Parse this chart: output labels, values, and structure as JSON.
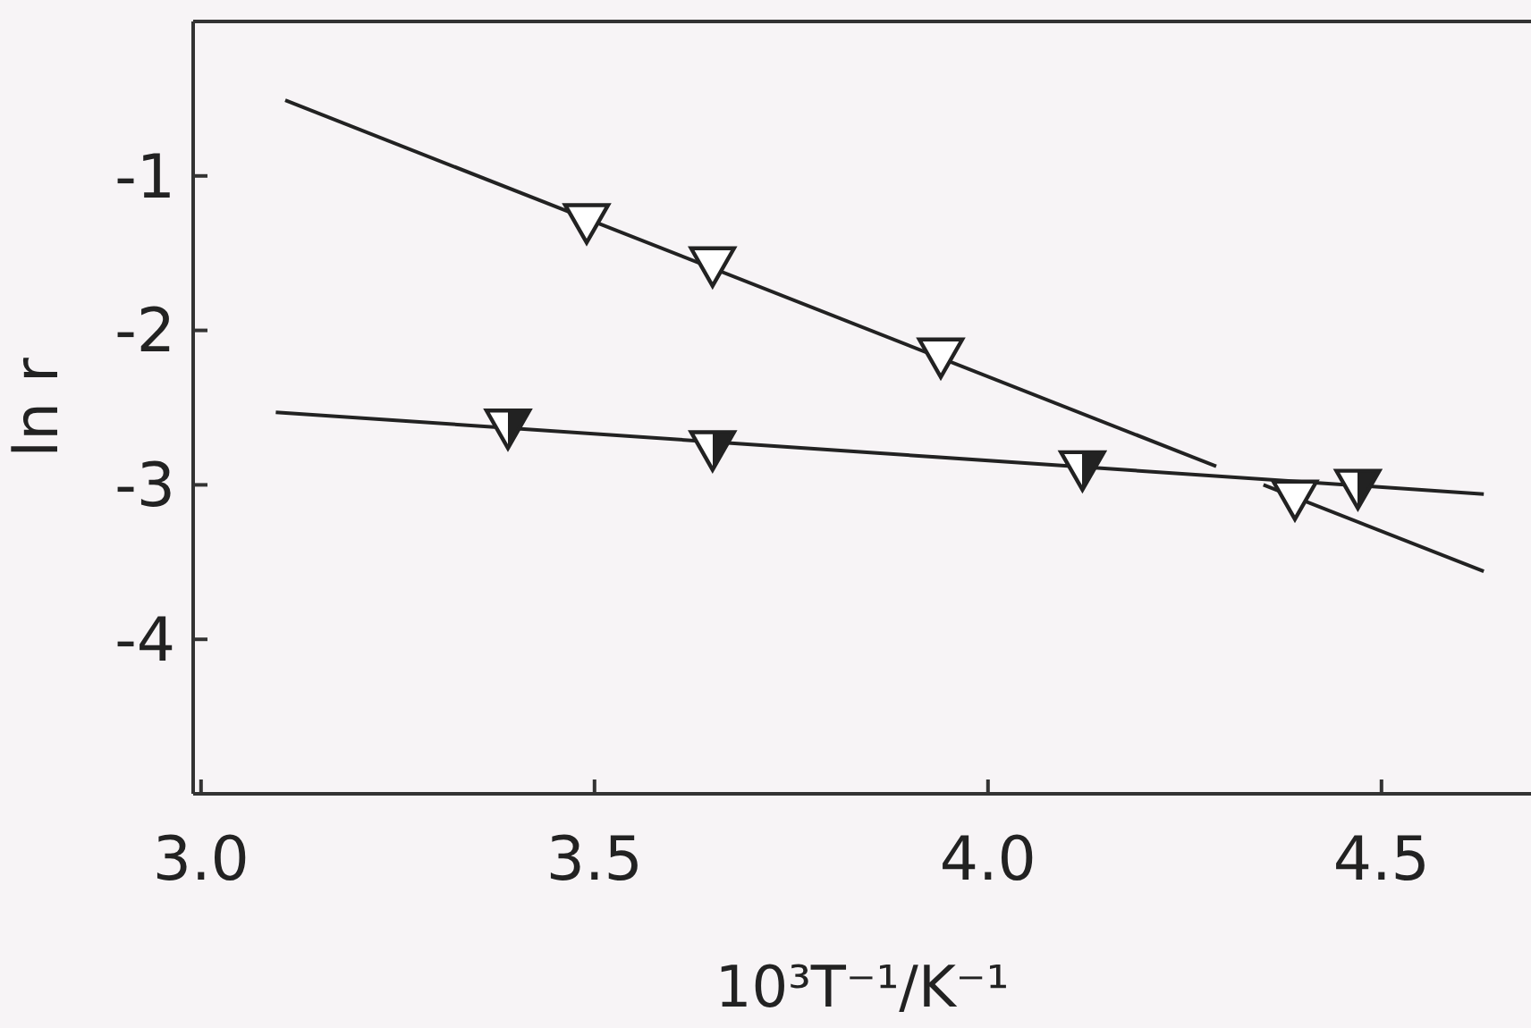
{
  "chart_data": {
    "type": "scatter",
    "xlabel": "10³T⁻¹/K⁻¹",
    "ylabel": "ln r",
    "xlim": [
      2.99,
      4.69
    ],
    "ylim": [
      -5,
      0
    ],
    "xticks": [
      {
        "value": 3.0,
        "label": "3.0"
      },
      {
        "value": 3.5,
        "label": "3.5"
      },
      {
        "value": 4.0,
        "label": "4.0"
      },
      {
        "value": 4.5,
        "label": "4.5"
      }
    ],
    "yticks": [
      -1,
      -2,
      -3,
      -4
    ],
    "grid": false,
    "series": [
      {
        "type": "line",
        "color": "#222222",
        "marker": "none",
        "x": [
          3.107,
          4.29
        ],
        "values": [
          -0.51,
          -2.88
        ]
      },
      {
        "type": "line",
        "color": "#222222",
        "marker": "none",
        "x": [
          4.35,
          4.63
        ],
        "values": [
          -3.0,
          -3.56
        ]
      },
      {
        "type": "line",
        "color": "#222222",
        "marker": "none",
        "x": [
          3.095,
          4.63
        ],
        "values": [
          -2.53,
          -3.06
        ]
      },
      {
        "color": "#222222",
        "marker": "triangle",
        "x": [
          3.49,
          3.65,
          3.94,
          4.39
        ],
        "values": [
          -1.3,
          -1.58,
          -2.17,
          -3.09
        ]
      },
      {
        "color": "#222222",
        "marker": "triangle-half",
        "x": [
          3.39,
          3.65,
          4.12,
          4.47
        ],
        "values": [
          -2.63,
          -2.77,
          -2.9,
          -3.02
        ]
      }
    ]
  }
}
